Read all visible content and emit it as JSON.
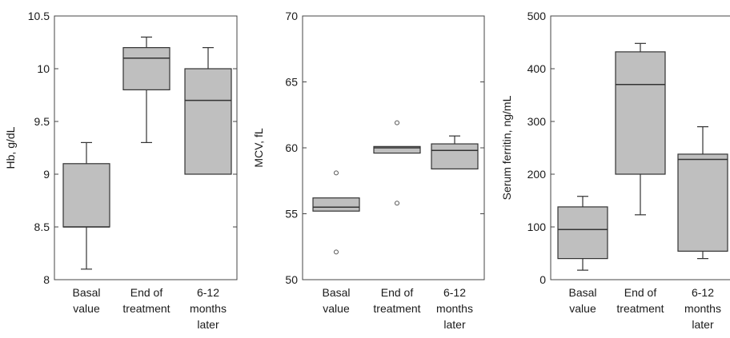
{
  "chart_data": [
    {
      "type": "box",
      "ylabel": "Hb, g/dL",
      "ylim": [
        8,
        10.5
      ],
      "yticks": [
        8,
        8.5,
        9,
        9.5,
        10,
        10.5
      ],
      "ytick_labels": [
        "8",
        "8.5",
        "9",
        "9.5",
        "10",
        "10.5"
      ],
      "categories": [
        [
          "Basal",
          "value"
        ],
        [
          "End of",
          "treatment"
        ],
        [
          "6-12",
          "months",
          "later"
        ]
      ],
      "boxes": [
        {
          "whisker_low": 8.1,
          "q1": 8.5,
          "median": 8.5,
          "q3": 9.1,
          "whisker_high": 9.3,
          "outliers": []
        },
        {
          "whisker_low": 9.3,
          "q1": 9.8,
          "median": 10.1,
          "q3": 10.2,
          "whisker_high": 10.3,
          "outliers": []
        },
        {
          "whisker_low": 9.0,
          "q1": 9.0,
          "median": 9.7,
          "q3": 10.0,
          "whisker_high": 10.2,
          "outliers": []
        }
      ]
    },
    {
      "type": "box",
      "ylabel": "MCV, fL",
      "ylim": [
        50,
        70
      ],
      "yticks": [
        50,
        55,
        60,
        65,
        70
      ],
      "ytick_labels": [
        "50",
        "55",
        "60",
        "65",
        "70"
      ],
      "categories": [
        [
          "Basal",
          "value"
        ],
        [
          "End of",
          "treatment"
        ],
        [
          "6-12",
          "months",
          "later"
        ]
      ],
      "boxes": [
        {
          "whisker_low": 55.2,
          "q1": 55.2,
          "median": 55.5,
          "q3": 56.2,
          "whisker_high": 56.2,
          "outliers": [
            52.1,
            58.1
          ]
        },
        {
          "whisker_low": 59.6,
          "q1": 59.6,
          "median": 60.0,
          "q3": 60.1,
          "whisker_high": 60.1,
          "outliers": [
            55.8,
            61.9
          ]
        },
        {
          "whisker_low": 58.4,
          "q1": 58.4,
          "median": 59.8,
          "q3": 60.3,
          "whisker_high": 60.9,
          "outliers": []
        }
      ]
    },
    {
      "type": "box",
      "ylabel": "Serum ferritin, ng/mL",
      "ylim": [
        0,
        500
      ],
      "yticks": [
        0,
        100,
        200,
        300,
        400,
        500
      ],
      "ytick_labels": [
        "0",
        "100",
        "200",
        "300",
        "400",
        "500"
      ],
      "categories": [
        [
          "Basal",
          "value"
        ],
        [
          "End of",
          "treatment"
        ],
        [
          "6-12",
          "months",
          "later"
        ]
      ],
      "boxes": [
        {
          "whisker_low": 18,
          "q1": 40,
          "median": 95,
          "q3": 138,
          "whisker_high": 158,
          "outliers": []
        },
        {
          "whisker_low": 123,
          "q1": 200,
          "median": 370,
          "q3": 432,
          "whisker_high": 448,
          "outliers": []
        },
        {
          "whisker_low": 40,
          "q1": 54,
          "median": 228,
          "q3": 238,
          "whisker_high": 290,
          "outliers": []
        }
      ]
    }
  ]
}
